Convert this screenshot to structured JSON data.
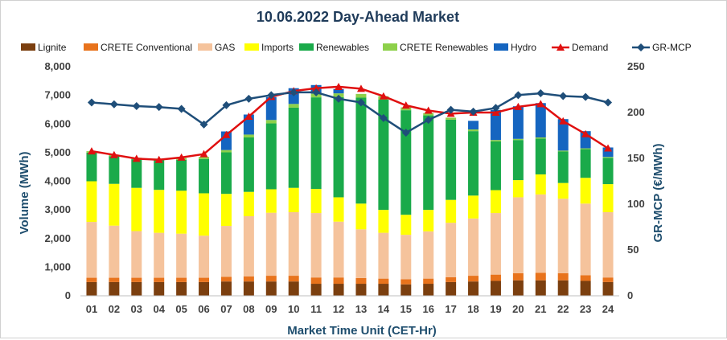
{
  "chart_data": {
    "type": "bar",
    "title": "10.06.2022  Day-Ahead Market",
    "xlabel": "Market Time Unit (CET-Hr)",
    "ylabel": "Volume (MWh)",
    "y2label": "GR-MCP (€/MWh)",
    "ylim": [
      0,
      8000
    ],
    "y2lim": [
      0,
      250
    ],
    "yticks": [
      "0",
      "1,000",
      "2,000",
      "3,000",
      "4,000",
      "5,000",
      "6,000",
      "7,000",
      "8,000"
    ],
    "y2ticks": [
      "0",
      "50",
      "100",
      "150",
      "200",
      "250"
    ],
    "categories": [
      "01",
      "02",
      "03",
      "04",
      "05",
      "06",
      "07",
      "08",
      "09",
      "10",
      "11",
      "12",
      "13",
      "14",
      "15",
      "16",
      "17",
      "18",
      "19",
      "20",
      "21",
      "22",
      "23",
      "24"
    ],
    "series": [
      {
        "name": "Lignite",
        "kind": "bar",
        "color": "#7b3f0f",
        "values": [
          480,
          480,
          480,
          480,
          480,
          480,
          500,
          500,
          500,
          500,
          420,
          420,
          420,
          420,
          400,
          420,
          480,
          500,
          520,
          540,
          540,
          540,
          520,
          480
        ]
      },
      {
        "name": "CRETE Conventional",
        "kind": "bar",
        "color": "#e8731c",
        "values": [
          150,
          150,
          150,
          150,
          150,
          150,
          160,
          180,
          200,
          200,
          220,
          220,
          200,
          180,
          180,
          180,
          170,
          200,
          220,
          250,
          260,
          250,
          200,
          160
        ]
      },
      {
        "name": "GAS",
        "kind": "bar",
        "color": "#f5c39c",
        "values": [
          1950,
          1820,
          1630,
          1570,
          1540,
          1470,
          1780,
          2100,
          2200,
          2220,
          2250,
          1950,
          1700,
          1600,
          1550,
          1650,
          1900,
          2000,
          2150,
          2650,
          2740,
          2600,
          2500,
          2280
        ]
      },
      {
        "name": "Imports",
        "kind": "bar",
        "color": "#ffff00",
        "values": [
          1420,
          1460,
          1510,
          1500,
          1500,
          1480,
          1120,
          850,
          820,
          850,
          840,
          850,
          900,
          800,
          700,
          750,
          800,
          800,
          800,
          600,
          700,
          550,
          900,
          980
        ]
      },
      {
        "name": "Renewables",
        "kind": "bar",
        "color": "#1aaa4a",
        "values": [
          1000,
          960,
          1000,
          1030,
          1080,
          1200,
          1450,
          1900,
          2300,
          2800,
          3200,
          3500,
          3700,
          3850,
          3650,
          3300,
          2800,
          2250,
          1700,
          1400,
          1250,
          1100,
          1000,
          920
        ]
      },
      {
        "name": "CRETE Renewables",
        "kind": "bar",
        "color": "#8dd04a",
        "values": [
          50,
          50,
          50,
          60,
          60,
          70,
          80,
          100,
          120,
          130,
          130,
          130,
          130,
          120,
          100,
          80,
          70,
          60,
          50,
          40,
          40,
          30,
          30,
          30
        ]
      },
      {
        "name": "Hydro",
        "kind": "bar",
        "color": "#1565c0",
        "values": [
          0,
          0,
          0,
          0,
          0,
          0,
          650,
          700,
          800,
          550,
          300,
          150,
          0,
          0,
          0,
          0,
          0,
          300,
          1050,
          1140,
          1200,
          1100,
          600,
          330
        ]
      },
      {
        "name": "Demand",
        "kind": "line",
        "axis": "left",
        "color": "#e01010",
        "values": [
          5050,
          4920,
          4790,
          4750,
          4830,
          4950,
          5620,
          6260,
          6950,
          7150,
          7250,
          7300,
          7230,
          6970,
          6650,
          6470,
          6360,
          6400,
          6400,
          6600,
          6700,
          6100,
          5650,
          5150
        ]
      },
      {
        "name": "GR-MCP",
        "kind": "line",
        "axis": "right",
        "color": "#1f4e79",
        "values": [
          211,
          209,
          207,
          206,
          204,
          187,
          208,
          215,
          219,
          222,
          222,
          215,
          211,
          194,
          178,
          192,
          203,
          201,
          205,
          219,
          221,
          218,
          217,
          211
        ]
      }
    ]
  }
}
